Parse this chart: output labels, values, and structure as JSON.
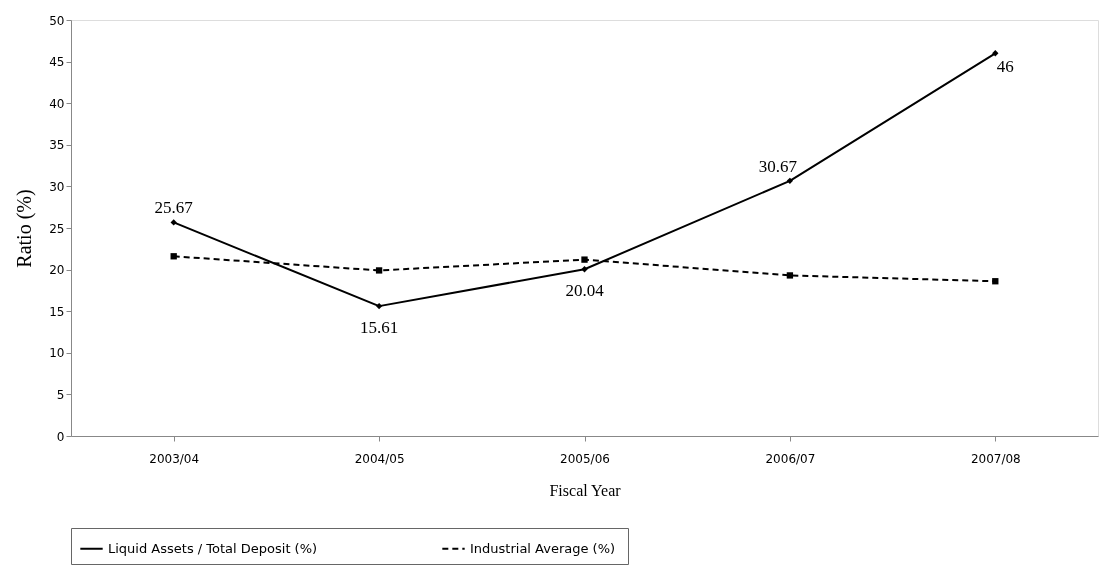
{
  "chart_data": {
    "type": "line",
    "xlabel": "Fiscal Year",
    "ylabel": "Ratio (%)",
    "categories": [
      "2003/04",
      "2004/05",
      "2005/06",
      "2006/07",
      "2007/08"
    ],
    "series": [
      {
        "name": "Liquid Assets / Total Deposit (%)",
        "color": "#000000",
        "values": [
          25.67,
          15.61,
          20.04,
          30.67,
          46
        ],
        "value_labels": [
          "25.67",
          "15.61",
          "20.04",
          "30.67",
          "46"
        ],
        "marker": "diamond",
        "line_style": "solid"
      },
      {
        "name": "Industrial Average  (%)",
        "color": "#000000",
        "values": [
          21.6,
          19.9,
          21.2,
          19.3,
          18.6
        ],
        "marker": "square",
        "line_style": "dashed"
      }
    ],
    "ylim": [
      0,
      50
    ],
    "yticks": [
      0,
      5,
      10,
      15,
      20,
      25,
      30,
      35,
      40,
      45,
      50
    ],
    "grid": false,
    "legend": "bottom"
  }
}
